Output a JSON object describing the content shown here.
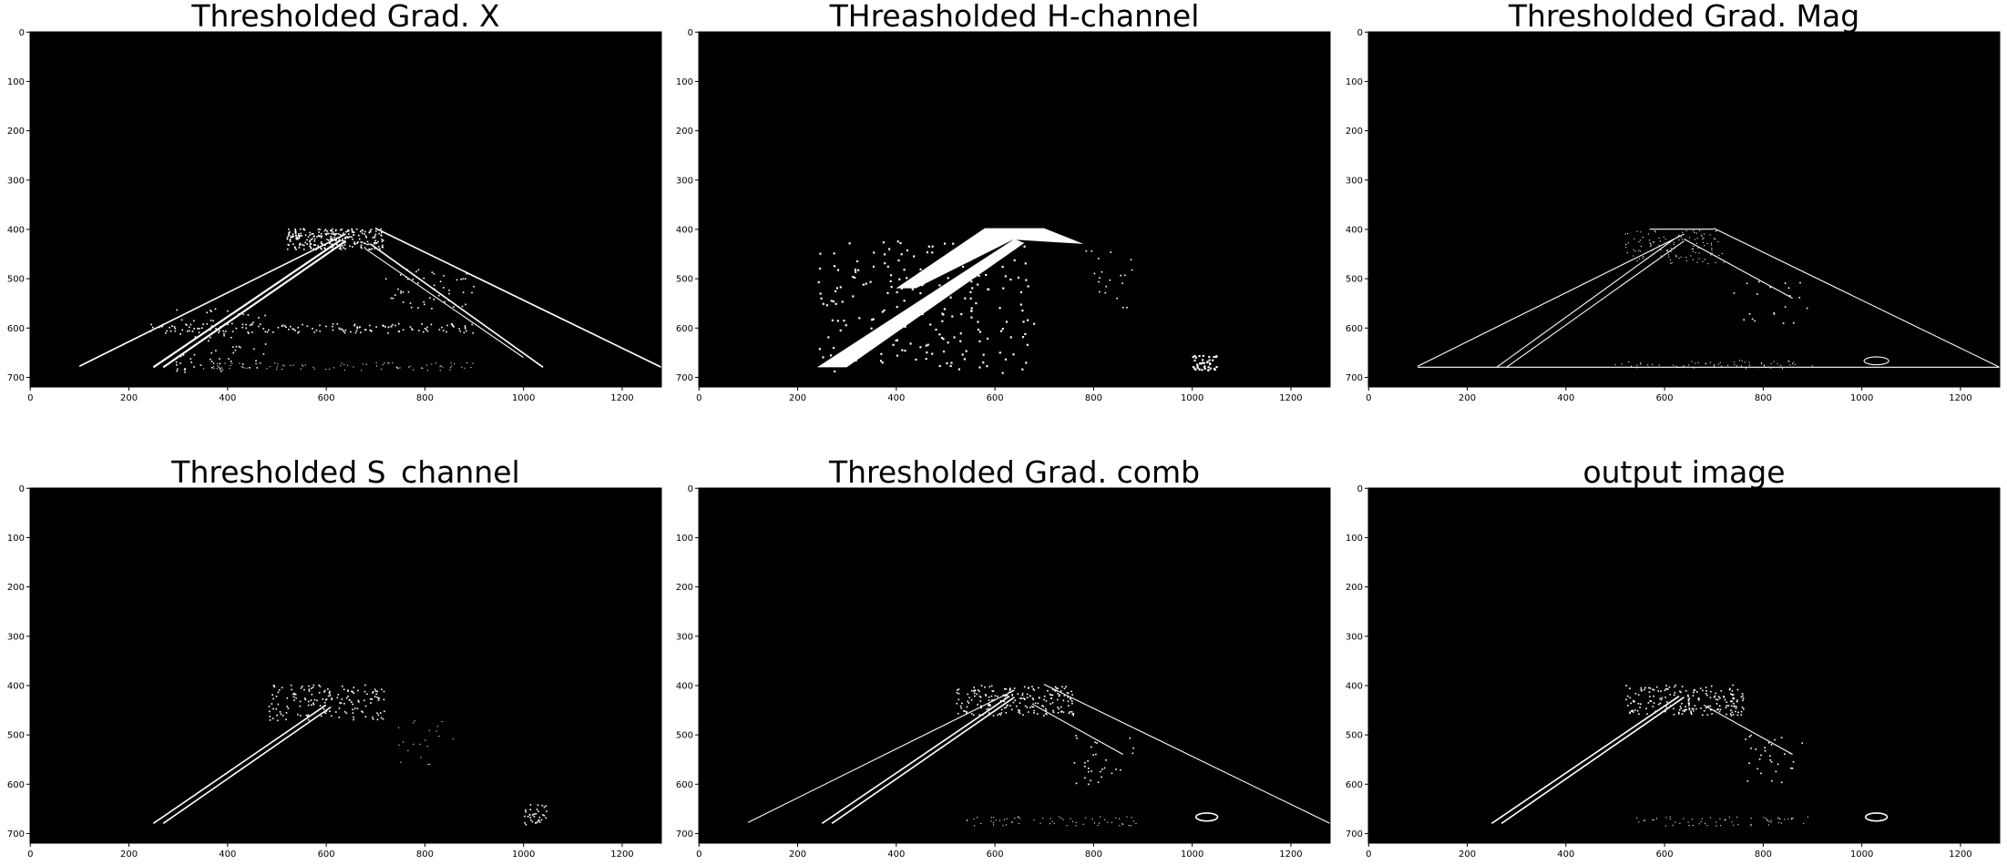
{
  "figure": {
    "image_width": 1280,
    "image_height": 720,
    "x_ticks": [
      "0",
      "200",
      "400",
      "600",
      "800",
      "1000",
      "1200"
    ],
    "y_ticks": [
      "0",
      "100",
      "200",
      "300",
      "400",
      "500",
      "600",
      "700"
    ],
    "background_color": "#000000",
    "foreground_color": "#ffffff",
    "panels": [
      {
        "id": "gradx",
        "title": "Thresholded Grad. X"
      },
      {
        "id": "hchan",
        "title": "THreasholded H-channel"
      },
      {
        "id": "gradmag",
        "title": "Thresholded Grad. Mag"
      },
      {
        "id": "schan",
        "title": "Thresholded S_channel"
      },
      {
        "id": "comb",
        "title": "Thresholded Grad. comb"
      },
      {
        "id": "output",
        "title": "output image"
      }
    ]
  }
}
